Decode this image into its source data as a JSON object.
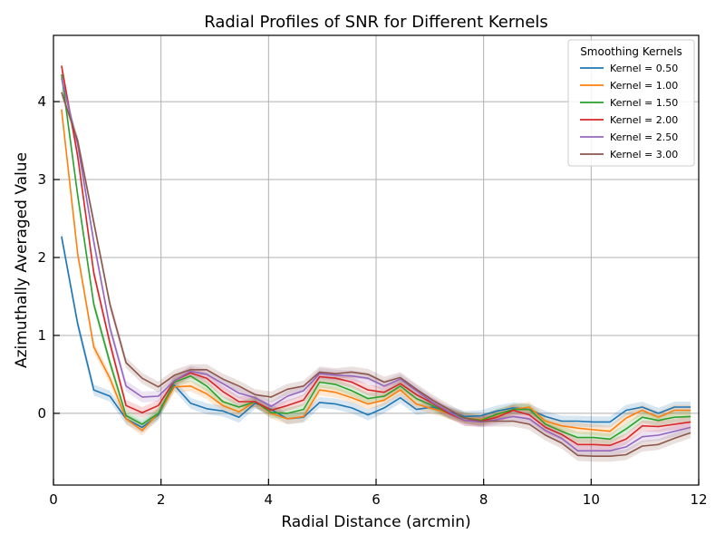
{
  "chart_data": {
    "type": "line",
    "title": "Radial Profiles of SNR for Different Kernels",
    "xlabel": "Radial Distance (arcmin)",
    "ylabel": "Azimuthally Averaged Value",
    "xlim": [
      0,
      12
    ],
    "ylim": [
      -0.92,
      4.85
    ],
    "xticks": [
      "0",
      "2",
      "4",
      "6",
      "8",
      "10",
      "12"
    ],
    "yticks": [
      "0",
      "1",
      "2",
      "3",
      "4"
    ],
    "grid": true,
    "legend": {
      "title": "Smoothing Kernels",
      "position": "top-right"
    },
    "x": [
      0.15,
      0.45,
      0.75,
      1.05,
      1.35,
      1.65,
      1.95,
      2.25,
      2.55,
      2.85,
      3.15,
      3.45,
      3.75,
      4.05,
      4.35,
      4.65,
      4.95,
      5.25,
      5.55,
      5.85,
      6.15,
      6.45,
      6.75,
      7.05,
      7.35,
      7.65,
      7.95,
      8.25,
      8.55,
      8.85,
      9.15,
      9.45,
      9.75,
      10.05,
      10.35,
      10.65,
      10.95,
      11.25,
      11.55,
      11.85
    ],
    "series": [
      {
        "name": "Kernel = 0.50",
        "color": "#1f77b4",
        "values": [
          2.27,
          1.15,
          0.3,
          0.22,
          -0.07,
          -0.18,
          -0.02,
          0.36,
          0.13,
          0.06,
          0.03,
          -0.05,
          0.13,
          0.05,
          -0.07,
          -0.05,
          0.14,
          0.12,
          0.07,
          -0.02,
          0.07,
          0.2,
          0.05,
          0.08,
          0.02,
          -0.04,
          -0.03,
          0.03,
          0.07,
          0.05,
          -0.04,
          -0.1,
          -0.1,
          -0.11,
          -0.11,
          0.04,
          0.08,
          0.0,
          0.08,
          0.08
        ]
      },
      {
        "name": "Kernel = 1.00",
        "color": "#ff7f0e",
        "values": [
          3.9,
          2.05,
          0.85,
          0.45,
          -0.07,
          -0.22,
          0.0,
          0.34,
          0.35,
          0.25,
          0.1,
          0.02,
          0.15,
          0.0,
          -0.07,
          -0.04,
          0.3,
          0.27,
          0.2,
          0.12,
          0.17,
          0.3,
          0.12,
          0.06,
          0.0,
          -0.06,
          -0.08,
          -0.02,
          0.05,
          0.08,
          -0.1,
          -0.16,
          -0.19,
          -0.21,
          -0.23,
          -0.06,
          0.04,
          -0.05,
          0.04,
          0.04
        ]
      },
      {
        "name": "Kernel = 1.50",
        "color": "#2ca02c",
        "values": [
          4.35,
          2.8,
          1.4,
          0.65,
          -0.03,
          -0.14,
          0.0,
          0.4,
          0.48,
          0.35,
          0.15,
          0.08,
          0.15,
          0.01,
          0.0,
          0.05,
          0.4,
          0.37,
          0.29,
          0.19,
          0.22,
          0.35,
          0.19,
          0.1,
          0.0,
          -0.06,
          -0.09,
          -0.01,
          0.05,
          0.05,
          -0.14,
          -0.23,
          -0.31,
          -0.31,
          -0.33,
          -0.2,
          -0.05,
          -0.09,
          -0.05,
          -0.04
        ]
      },
      {
        "name": "Kernel = 2.00",
        "color": "#d62728",
        "values": [
          4.46,
          3.3,
          1.8,
          0.9,
          0.1,
          0.01,
          0.1,
          0.42,
          0.52,
          0.45,
          0.28,
          0.15,
          0.15,
          0.04,
          0.1,
          0.17,
          0.47,
          0.45,
          0.4,
          0.3,
          0.27,
          0.38,
          0.24,
          0.13,
          0.0,
          -0.09,
          -0.1,
          -0.05,
          0.04,
          -0.02,
          -0.18,
          -0.27,
          -0.4,
          -0.4,
          -0.41,
          -0.33,
          -0.16,
          -0.17,
          -0.14,
          -0.11
        ]
      },
      {
        "name": "Kernel = 2.50",
        "color": "#9467bd",
        "values": [
          4.3,
          3.45,
          2.2,
          1.1,
          0.35,
          0.21,
          0.22,
          0.42,
          0.54,
          0.5,
          0.38,
          0.26,
          0.2,
          0.09,
          0.22,
          0.29,
          0.51,
          0.49,
          0.48,
          0.45,
          0.35,
          0.44,
          0.29,
          0.14,
          0.02,
          -0.09,
          -0.11,
          -0.08,
          -0.04,
          -0.07,
          -0.22,
          -0.32,
          -0.48,
          -0.48,
          -0.48,
          -0.43,
          -0.3,
          -0.28,
          -0.23,
          -0.18
        ]
      },
      {
        "name": "Kernel = 3.00",
        "color": "#8c564b",
        "values": [
          4.12,
          3.5,
          2.45,
          1.4,
          0.65,
          0.45,
          0.34,
          0.49,
          0.56,
          0.56,
          0.44,
          0.35,
          0.24,
          0.21,
          0.31,
          0.35,
          0.53,
          0.51,
          0.53,
          0.5,
          0.4,
          0.46,
          0.31,
          0.17,
          0.05,
          -0.06,
          -0.1,
          -0.1,
          -0.1,
          -0.14,
          -0.28,
          -0.38,
          -0.54,
          -0.55,
          -0.55,
          -0.53,
          -0.42,
          -0.4,
          -0.32,
          -0.25
        ]
      }
    ]
  }
}
